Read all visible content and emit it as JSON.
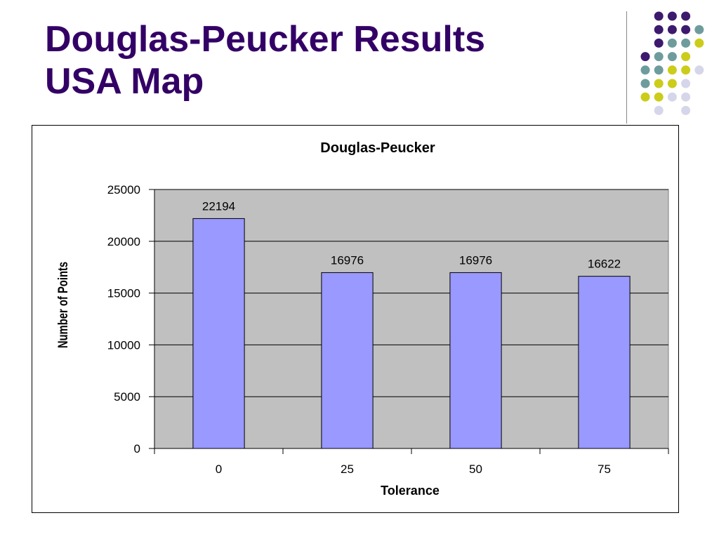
{
  "slide": {
    "title_line1": "Douglas-Peucker Results",
    "title_line2": "USA Map"
  },
  "decoration": {
    "dot_colors": {
      "purple": "#3d1a6e",
      "teal": "#6e9c9c",
      "yellow": "#cccc1a",
      "lavender": "#d6d6ea"
    },
    "dot_grid": [
      [
        "",
        "P",
        "P",
        "P",
        ""
      ],
      [
        "",
        "P",
        "P",
        "P",
        "T"
      ],
      [
        "",
        "P",
        "T",
        "T",
        "Y"
      ],
      [
        "P",
        "T",
        "T",
        "Y",
        ""
      ],
      [
        "T",
        "T",
        "Y",
        "Y",
        "L"
      ],
      [
        "T",
        "Y",
        "Y",
        "L",
        ""
      ],
      [
        "Y",
        "Y",
        "L",
        "L",
        ""
      ],
      [
        "",
        "L",
        "",
        "L",
        ""
      ]
    ]
  },
  "chart_data": {
    "type": "bar",
    "title": "Douglas-Peucker",
    "xlabel": "Tolerance",
    "ylabel": "Number of Points",
    "categories": [
      "0",
      "25",
      "50",
      "75"
    ],
    "values": [
      22194,
      16976,
      16976,
      16622
    ],
    "data_labels": [
      "22194",
      "16976",
      "16976",
      "16622"
    ],
    "ylim": [
      0,
      25000
    ],
    "yticks": [
      0,
      5000,
      10000,
      15000,
      20000,
      25000
    ],
    "ytick_labels": [
      "0",
      "5000",
      "10000",
      "15000",
      "20000",
      "25000"
    ],
    "grid": true,
    "legend": "none",
    "colors": {
      "bar_fill": "#9999ff",
      "bar_stroke": "#000000",
      "plot_background": "#c0c0c0",
      "gridline": "#000000"
    }
  }
}
